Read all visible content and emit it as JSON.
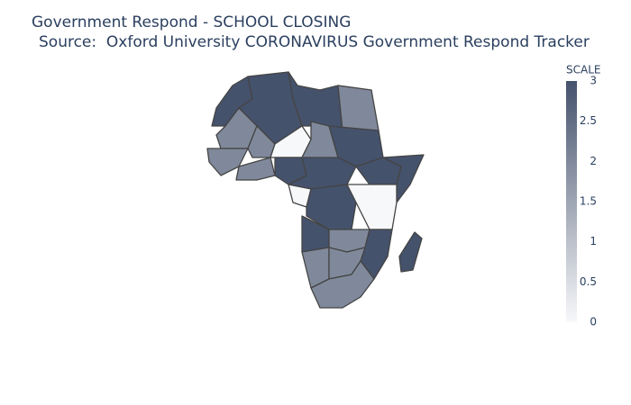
{
  "chart_data": {
    "type": "choropleth",
    "title": "Government Respond - SCHOOL CLOSING",
    "subtitle": "Source:  Oxford University CORONAVIRUS Government Respond Tracker",
    "colorbar_title": "SCALE",
    "zlim": [
      0,
      3
    ],
    "zticks": [
      0,
      0.5,
      1,
      1.5,
      2,
      2.5,
      3
    ],
    "colorscale": [
      "#f7f8fa",
      "#45526c"
    ],
    "border_color": "#444444",
    "values": [
      3,
      3,
      3,
      2,
      2,
      2,
      0,
      2,
      3,
      2,
      2,
      3,
      3,
      3,
      3,
      0,
      3,
      0,
      3,
      2,
      3,
      2,
      2,
      2,
      3
    ]
  }
}
